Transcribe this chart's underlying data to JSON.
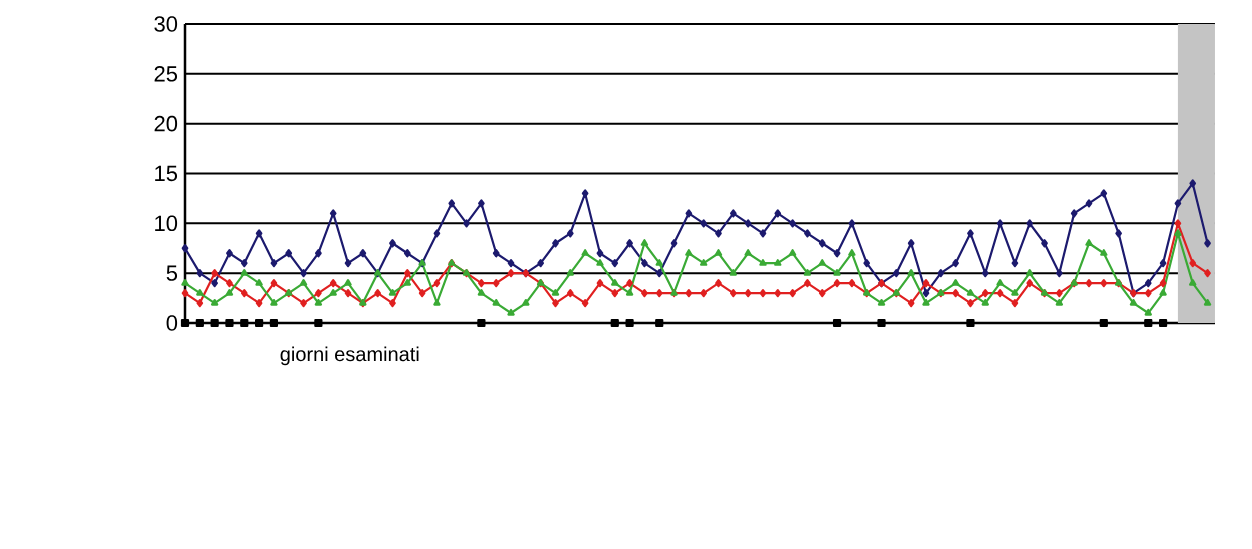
{
  "chart_data": {
    "type": "line",
    "xlabel": "giorni esaminati",
    "categories": [
      null,
      null,
      null,
      null,
      null,
      null,
      null,
      null,
      null,
      null,
      null,
      null,
      null,
      null,
      null,
      null,
      null,
      null,
      null,
      null,
      null,
      null,
      null,
      null,
      null,
      null,
      null,
      null,
      null,
      null,
      null,
      null,
      null,
      null,
      null,
      null,
      null,
      null,
      null,
      null,
      null,
      null,
      null,
      null,
      null,
      null,
      null,
      null,
      null,
      null,
      null,
      null,
      null,
      null,
      null,
      null,
      null,
      null,
      null,
      null,
      null,
      null,
      null,
      null,
      null,
      null,
      null,
      null,
      null,
      null
    ],
    "series": [
      {
        "color": "#1c1a6e",
        "marker": "diamond",
        "values": [
          7.5,
          5,
          4,
          7,
          6,
          9,
          6,
          7,
          5,
          7,
          11,
          6,
          7,
          5,
          8,
          7,
          6,
          9,
          12,
          10,
          12,
          7,
          6,
          5,
          6,
          8,
          9,
          13,
          7,
          6,
          8,
          6,
          5,
          8,
          11,
          10,
          9,
          11,
          10,
          9,
          11,
          10,
          9,
          8,
          7,
          10,
          6,
          4,
          5,
          8,
          3,
          5,
          6,
          9,
          5,
          10,
          6,
          10,
          8,
          5,
          11,
          12,
          13,
          9,
          3,
          4,
          6,
          12,
          14,
          8
        ]
      },
      {
        "color": "#e02020",
        "marker": "diamond",
        "values": [
          3,
          2,
          5,
          4,
          3,
          2,
          4,
          3,
          2,
          3,
          4,
          3,
          2,
          3,
          2,
          5,
          3,
          4,
          6,
          5,
          4,
          4,
          5,
          5,
          4,
          2,
          3,
          2,
          4,
          3,
          4,
          3,
          3,
          3,
          3,
          3,
          4,
          3,
          3,
          3,
          3,
          3,
          4,
          3,
          4,
          4,
          3,
          4,
          3,
          2,
          4,
          3,
          3,
          2,
          3,
          3,
          2,
          4,
          3,
          3,
          4,
          4,
          4,
          4,
          3,
          3,
          4,
          10,
          6,
          5
        ]
      },
      {
        "color": "#3aaa35",
        "marker": "triangle",
        "values": [
          4,
          3,
          2,
          3,
          5,
          4,
          2,
          3,
          4,
          2,
          3,
          4,
          2,
          5,
          3,
          4,
          6,
          2,
          6,
          5,
          3,
          2,
          1,
          2,
          4,
          3,
          5,
          7,
          6,
          4,
          3,
          8,
          6,
          3,
          7,
          6,
          7,
          5,
          7,
          6,
          6,
          7,
          5,
          6,
          5,
          7,
          3,
          2,
          3,
          5,
          2,
          3,
          4,
          3,
          2,
          4,
          3,
          5,
          3,
          2,
          4,
          8,
          7,
          4,
          2,
          1,
          3,
          9,
          4,
          2
        ]
      },
      {
        "type": "scatter",
        "color": "#000000",
        "marker": "square",
        "values": [
          0,
          0,
          0,
          0,
          0,
          0,
          0,
          null,
          null,
          0,
          null,
          null,
          null,
          null,
          null,
          null,
          null,
          null,
          null,
          null,
          0,
          null,
          null,
          null,
          null,
          null,
          null,
          null,
          null,
          0,
          0,
          null,
          0,
          null,
          null,
          null,
          null,
          null,
          null,
          null,
          null,
          null,
          null,
          null,
          0,
          null,
          null,
          0,
          null,
          null,
          null,
          null,
          null,
          0,
          null,
          null,
          null,
          null,
          null,
          null,
          null,
          null,
          0,
          null,
          null,
          0,
          0,
          null,
          null,
          null
        ]
      }
    ],
    "ylim": [
      0,
      30
    ],
    "yticks": [
      0,
      5,
      10,
      15,
      20,
      25,
      30
    ],
    "grid": "y"
  }
}
